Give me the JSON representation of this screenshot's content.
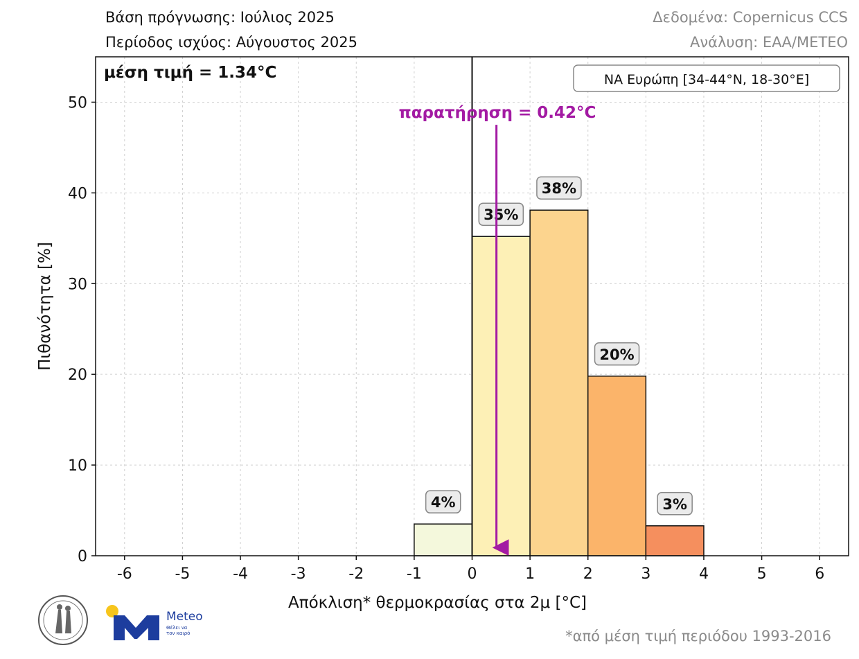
{
  "header": {
    "forecast_base": "Βάση πρόγνωσης: Ιούλιος 2025",
    "valid_period": "Περίοδος ισχύος: Αύγουστος 2025",
    "data_source": "Δεδομένα: Copernicus CCS",
    "analysis": "Ανάλυση: ΕΑΑ/ΜΕΤΕΟ"
  },
  "footnote": "*από μέση τιμή περιόδου 1993-2016",
  "logos": {
    "meteo_word": "Meteo",
    "meteo_sub": "Θέλει να τον καιρό"
  },
  "colors": {
    "observation": "#a31aa3",
    "bin_-1_0": "#f4f8dc",
    "bin_0_1": "#fdf0b6",
    "bin_1_2": "#fcd48e",
    "bin_2_3": "#fbb46a",
    "bin_3_4": "#f58f5e",
    "meteo_blue": "#1d3d9e",
    "meteo_yellow": "#f7c51c"
  },
  "chart_data": {
    "type": "bar",
    "title": "",
    "xlabel": "Απόκλιση* θερμοκρασίας στα 2μ [°C]",
    "ylabel": "Πιθανότητα [%]",
    "xlim": [
      -6.5,
      6.5
    ],
    "ylim": [
      0,
      55
    ],
    "xticks": [
      -6,
      -5,
      -4,
      -3,
      -2,
      -1,
      0,
      1,
      2,
      3,
      4,
      5,
      6
    ],
    "yticks": [
      0,
      10,
      20,
      30,
      40,
      50
    ],
    "grid": true,
    "bins": [
      {
        "from": -1,
        "to": 0,
        "value": 3.5,
        "label": "4%"
      },
      {
        "from": 0,
        "to": 1,
        "value": 35.2,
        "label": "35%"
      },
      {
        "from": 1,
        "to": 2,
        "value": 38.1,
        "label": "38%"
      },
      {
        "from": 2,
        "to": 3,
        "value": 19.8,
        "label": "20%"
      },
      {
        "from": 3,
        "to": 4,
        "value": 3.3,
        "label": "3%"
      }
    ],
    "mean_label": "μέση τιμή = 1.34°C",
    "observation": {
      "value": 0.42,
      "label": "παρατήρηση = 0.42°C"
    },
    "region_label": "ΝΑ Ευρώπη [34-44°N, 18-30°E]",
    "zero_line_x": 0
  }
}
